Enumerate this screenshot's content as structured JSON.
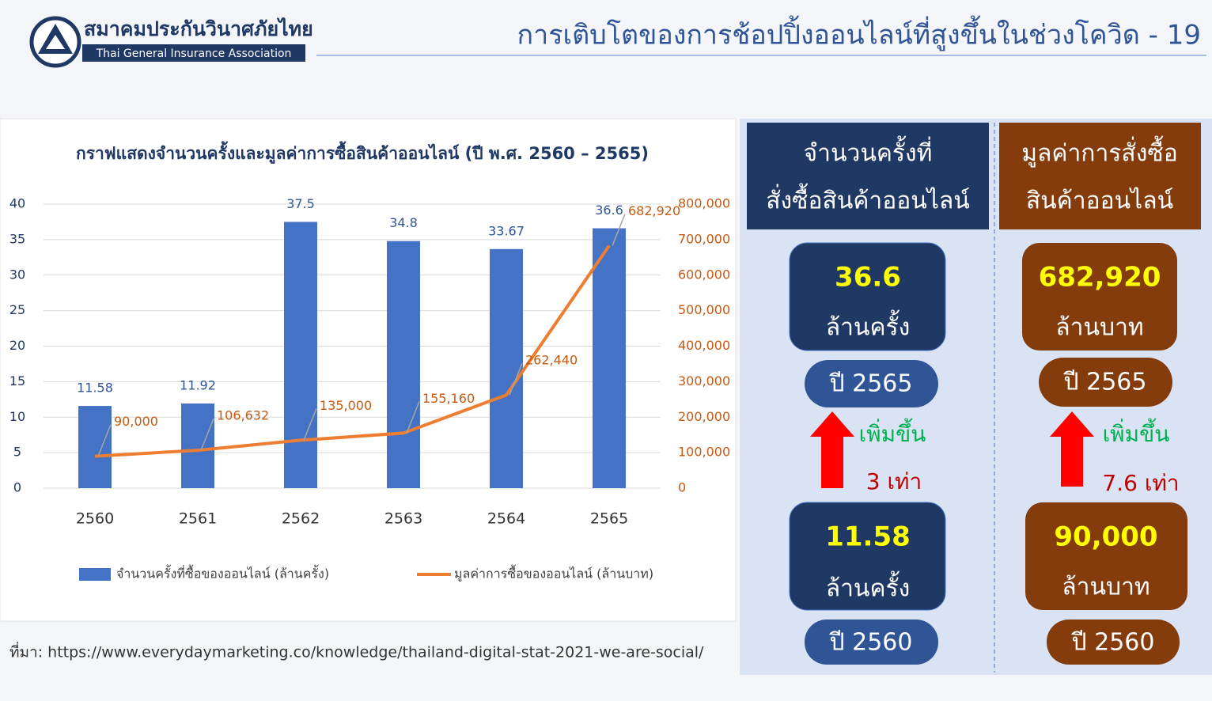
{
  "header": {
    "org_th": "สมาคมประกันวินาศภัยไทย",
    "org_en": "Thai General Insurance Association",
    "title": "การเติบโตของการช้อปปิ้งออนไลน์ที่สูงขึ้นในช่วงโควิด - 19"
  },
  "chart_data": {
    "type": "bar",
    "title": "กราฟแสดงจำนวนครั้งและมูลค่าการซื้อสินค้าออนไลน์ (ปี พ.ศ. 2560 – 2565)",
    "categories": [
      "2560",
      "2561",
      "2562",
      "2563",
      "2564",
      "2565"
    ],
    "series": [
      {
        "name": "จำนวนครั้งที่ซื้อของออนไลน์ (ล้านครั้ง)",
        "type": "bar",
        "color": "#4472c4",
        "values": [
          11.58,
          11.92,
          37.5,
          34.8,
          33.67,
          36.6
        ]
      },
      {
        "name": "มูลค่าการซื้อของออนไลน์ (ล้านบาท)",
        "type": "line",
        "axis": "y2",
        "color": "#ed7d31",
        "values": [
          90000,
          106632,
          135000,
          155160,
          262440,
          682920
        ],
        "value_labels": [
          "90,000",
          "106,632",
          "135,000",
          "155,160",
          "262,440",
          "682,920"
        ]
      }
    ],
    "ylim": [
      0,
      40
    ],
    "yticks": [
      0,
      5,
      10,
      15,
      20,
      25,
      30,
      35,
      40
    ],
    "y2lim": [
      0,
      800000
    ],
    "y2ticks": [
      0,
      {
        "value": 100000,
        "label": "100,000"
      },
      {
        "value": 200000,
        "label": "200,000"
      },
      {
        "value": 300000,
        "label": "300,000"
      },
      {
        "value": 400000,
        "label": "400,000"
      },
      {
        "value": 500000,
        "label": "500,000"
      },
      {
        "value": 600000,
        "label": "600,000"
      },
      {
        "value": 700000,
        "label": "700,000"
      },
      {
        "value": 800000,
        "label": "800,000"
      }
    ],
    "grid": true,
    "legend": "bottom"
  },
  "panels": [
    {
      "header": [
        "จำนวนครั้งที่",
        "สั่งซื้อสินค้าออนไลน์"
      ],
      "top": {
        "value": "36.6",
        "unit": "ล้านครั้ง",
        "year": "ปี 2565"
      },
      "change": {
        "label": "เพิ่มขึ้น",
        "factor": "3 เท่า"
      },
      "bottom": {
        "value": "11.58",
        "unit": "ล้านครั้ง",
        "year": "ปี 2560"
      }
    },
    {
      "header": [
        "มูลค่าการสั่งซื้อ",
        "สินค้าออนไลน์"
      ],
      "top": {
        "value": "682,920",
        "unit": "ล้านบาท",
        "year": "ปี 2565"
      },
      "change": {
        "label": "เพิ่มขึ้น",
        "factor": "7.6 เท่า"
      },
      "bottom": {
        "value": "90,000",
        "unit": "ล้านบาท",
        "year": "ปี 2560"
      }
    }
  ],
  "source": "ที่มา: https://www.everydaymarketing.co/knowledge/thailand-digital-stat-2021-we-are-social/"
}
